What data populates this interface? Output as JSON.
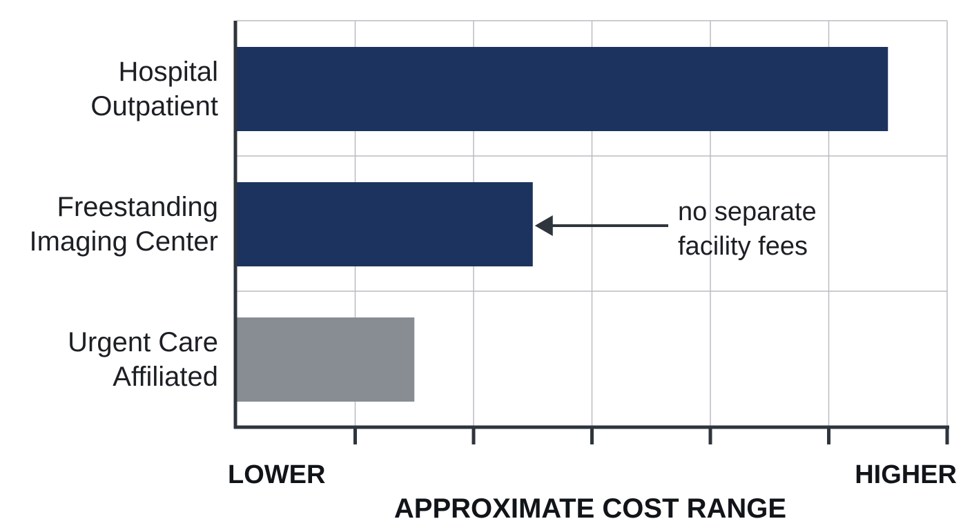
{
  "chart_data": {
    "type": "bar",
    "orientation": "horizontal",
    "categories": [
      "Hospital Outpatient",
      "Freestanding Imaging Center",
      "Urgent Care Affiliated"
    ],
    "category_lines": [
      [
        "Hospital",
        "Outpatient"
      ],
      [
        "Freestanding",
        "Imaging Center"
      ],
      [
        "Urgent Care",
        "Affiliated"
      ]
    ],
    "values": [
      5.5,
      2.5,
      1.5
    ],
    "colors": [
      "#1b335e",
      "#1b335e",
      "#888d94"
    ],
    "xlim": [
      0,
      6
    ],
    "xlabel": "APPROXIMATE COST RANGE",
    "x_end_labels": {
      "low": "LOWER",
      "high": "HIGHER"
    },
    "x_ticks": [
      1,
      2,
      3,
      4,
      5,
      6
    ],
    "grid": true,
    "annotation": {
      "category": "Freestanding Imaging Center",
      "lines": [
        "no separate",
        "facility fees"
      ]
    }
  },
  "colors": {
    "grid": "#b9bcc0",
    "axis": "#2f353c",
    "text": "#1c1f24"
  }
}
